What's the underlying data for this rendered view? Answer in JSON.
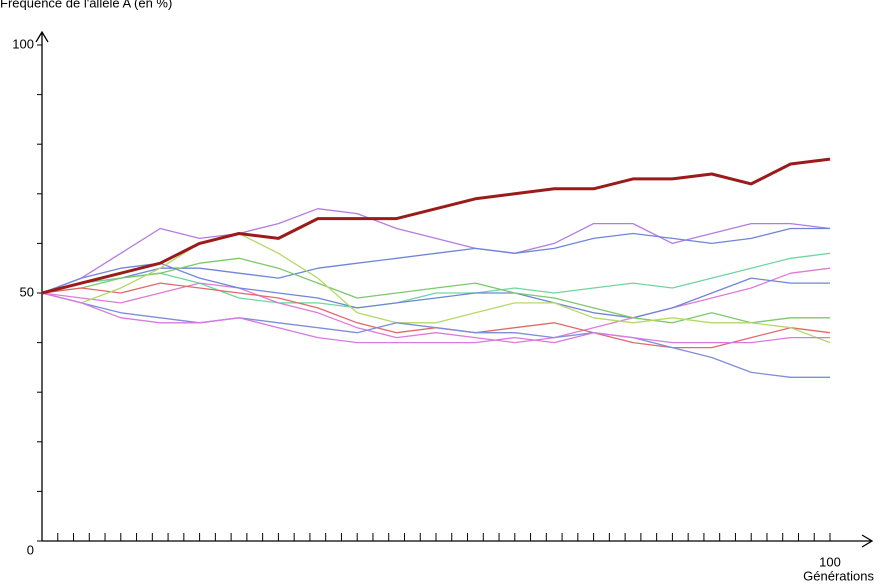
{
  "chart_data": {
    "type": "line",
    "y_label": "Fréquence de l'allèle A (en %)",
    "x_label": "Générations",
    "x": [
      0,
      5,
      10,
      15,
      20,
      25,
      30,
      35,
      40,
      45,
      50,
      55,
      60,
      65,
      70,
      75,
      80,
      85,
      90,
      95,
      100
    ],
    "xlim": [
      0,
      100
    ],
    "ylim": [
      0,
      100
    ],
    "xticks": [
      100
    ],
    "yticks": [
      0,
      50,
      100
    ],
    "xminor_ticks": [
      2,
      4,
      6,
      8,
      10,
      12,
      14,
      16,
      18,
      20,
      22,
      24,
      26,
      28,
      30,
      32,
      34,
      36,
      38,
      40,
      42,
      44,
      46,
      48,
      50,
      52,
      54,
      56,
      58,
      60,
      62,
      64,
      66,
      68,
      70,
      72,
      74,
      76,
      78,
      80,
      82,
      84,
      86,
      88,
      90,
      92,
      94,
      96,
      98
    ],
    "yminor_ticks": [
      10,
      20,
      30,
      40,
      60,
      70,
      80,
      90
    ],
    "series": [
      {
        "color": "#b57be0",
        "values": [
          50,
          53,
          58,
          63,
          61,
          62,
          64,
          67,
          66,
          63,
          61,
          59,
          58,
          60,
          64,
          64,
          60,
          62,
          64,
          64,
          63
        ]
      },
      {
        "color": "#6f86d8",
        "values": [
          50,
          52,
          53,
          55,
          55,
          54,
          53,
          55,
          56,
          57,
          58,
          59,
          58,
          59,
          61,
          62,
          61,
          60,
          61,
          63,
          63
        ]
      },
      {
        "color": "#6fd6a0",
        "values": [
          50,
          52,
          53,
          54,
          52,
          49,
          48,
          48,
          47,
          48,
          50,
          50,
          51,
          50,
          51,
          52,
          51,
          53,
          55,
          57,
          58
        ]
      },
      {
        "color": "#e07ad8",
        "values": [
          50,
          49,
          48,
          50,
          52,
          51,
          48,
          46,
          43,
          41,
          42,
          41,
          40,
          41,
          43,
          45,
          47,
          49,
          51,
          54,
          55
        ]
      },
      {
        "color": "#6f86d8",
        "values": [
          50,
          53,
          55,
          56,
          53,
          51,
          50,
          49,
          47,
          48,
          49,
          50,
          50,
          48,
          46,
          45,
          47,
          50,
          53,
          52,
          52
        ]
      },
      {
        "color": "#7cc96a",
        "values": [
          50,
          51,
          53,
          54,
          56,
          57,
          55,
          52,
          49,
          50,
          51,
          52,
          50,
          49,
          47,
          45,
          44,
          46,
          44,
          45,
          45
        ]
      },
      {
        "color": "#e06a6a",
        "values": [
          50,
          51,
          50,
          52,
          51,
          50,
          49,
          47,
          44,
          42,
          43,
          42,
          43,
          44,
          42,
          40,
          39,
          39,
          41,
          43,
          42
        ]
      },
      {
        "color": "#b5d86a",
        "values": [
          50,
          48,
          51,
          55,
          60,
          62,
          58,
          53,
          46,
          44,
          44,
          46,
          48,
          48,
          45,
          44,
          45,
          44,
          44,
          43,
          40
        ]
      },
      {
        "color": "#7d8fd8",
        "values": [
          50,
          48,
          46,
          45,
          44,
          45,
          44,
          43,
          42,
          44,
          43,
          42,
          42,
          41,
          42,
          41,
          39,
          37,
          34,
          33,
          33
        ]
      },
      {
        "color": "#d77ae0",
        "values": [
          50,
          48,
          45,
          44,
          44,
          45,
          43,
          41,
          40,
          40,
          40,
          40,
          41,
          40,
          42,
          41,
          40,
          40,
          40,
          41,
          41
        ]
      },
      {
        "color": "#9b1b1b",
        "width": 3,
        "values": [
          50,
          52,
          54,
          56,
          60,
          62,
          61,
          65,
          65,
          65,
          67,
          69,
          70,
          71,
          71,
          73,
          73,
          74,
          72,
          76,
          77
        ]
      }
    ]
  }
}
